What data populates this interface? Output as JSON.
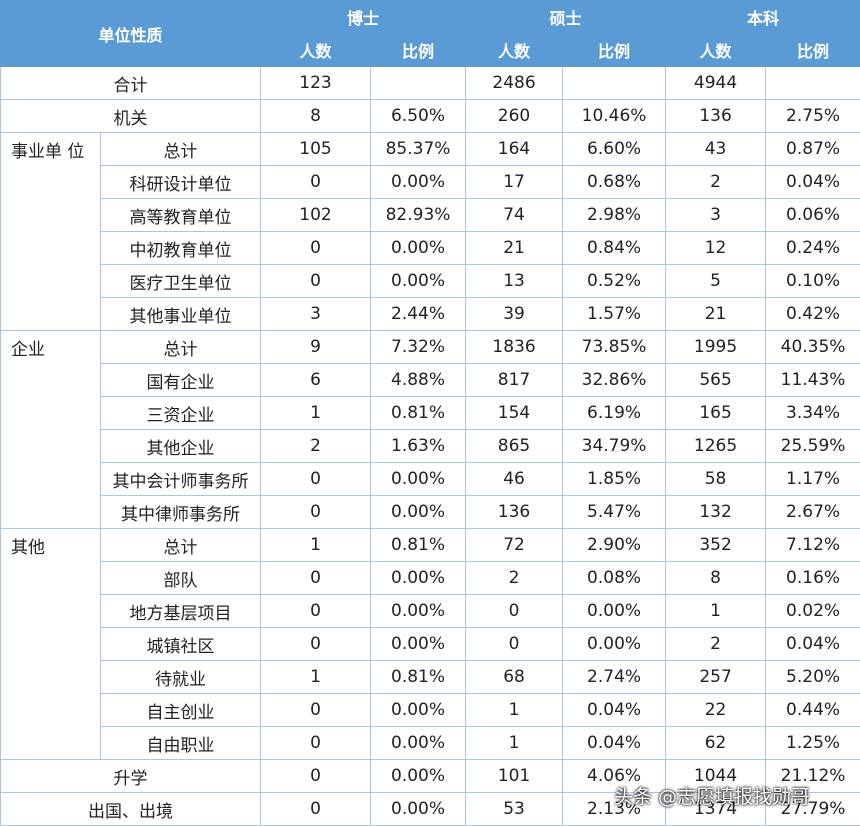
{
  "header": {
    "unit": "单位性质",
    "degrees": [
      "博士",
      "硕士",
      "本科"
    ],
    "subheaders": [
      "人数",
      "比例",
      "人数",
      "比例",
      "人数",
      "比例"
    ]
  },
  "sections": [
    {
      "label": "合计",
      "counts": [
        123,
        2486,
        4944
      ]
    },
    {
      "label": "机关",
      "counts": [
        8,
        260,
        136
      ],
      "ratios": [
        "6.50%",
        "10.46%",
        "2.75%"
      ]
    },
    {
      "group": "事业单 位",
      "rows": [
        {
          "label": "总计",
          "counts": [
            105,
            164,
            43
          ],
          "ratios": [
            "85.37%",
            "6.60%",
            "0.87%"
          ]
        },
        {
          "label": "科研设计单位",
          "counts": [
            0,
            17,
            2
          ],
          "ratios": [
            "0.00%",
            "0.68%",
            "0.04%"
          ]
        },
        {
          "label": "高等教育单位",
          "counts": [
            102,
            74,
            3
          ],
          "ratios": [
            "82.93%",
            "2.98%",
            "0.06%"
          ]
        },
        {
          "label": "中初教育单位",
          "counts": [
            0,
            21,
            12
          ],
          "ratios": [
            "0.00%",
            "0.84%",
            "0.24%"
          ]
        },
        {
          "label": "医疗卫生单位",
          "counts": [
            0,
            13,
            5
          ],
          "ratios": [
            "0.00%",
            "0.52%",
            "0.10%"
          ]
        },
        {
          "label": "其他事业单位",
          "counts": [
            3,
            39,
            21
          ],
          "ratios": [
            "2.44%",
            "1.57%",
            "0.42%"
          ]
        }
      ]
    },
    {
      "group": "企业",
      "rows": [
        {
          "label": "总计",
          "counts": [
            9,
            1836,
            1995
          ],
          "ratios": [
            "7.32%",
            "73.85%",
            "40.35%"
          ]
        },
        {
          "label": "国有企业",
          "counts": [
            6,
            817,
            565
          ],
          "ratios": [
            "4.88%",
            "32.86%",
            "11.43%"
          ]
        },
        {
          "label": "三资企业",
          "counts": [
            1,
            154,
            165
          ],
          "ratios": [
            "0.81%",
            "6.19%",
            "3.34%"
          ]
        },
        {
          "label": "其他企业",
          "counts": [
            2,
            865,
            1265
          ],
          "ratios": [
            "1.63%",
            "34.79%",
            "25.59%"
          ]
        },
        {
          "label": "其中会计师事务所",
          "counts": [
            0,
            46,
            58
          ],
          "ratios": [
            "0.00%",
            "1.85%",
            "1.17%"
          ]
        },
        {
          "label": "其中律师事务所",
          "counts": [
            0,
            136,
            132
          ],
          "ratios": [
            "0.00%",
            "5.47%",
            "2.67%"
          ]
        }
      ]
    },
    {
      "group": "其他",
      "rows": [
        {
          "label": "总计",
          "counts": [
            1,
            72,
            352
          ],
          "ratios": [
            "0.81%",
            "2.90%",
            "7.12%"
          ]
        },
        {
          "label": "部队",
          "counts": [
            0,
            2,
            8
          ],
          "ratios": [
            "0.00%",
            "0.08%",
            "0.16%"
          ]
        },
        {
          "label": "地方基层项目",
          "counts": [
            0,
            0,
            1
          ],
          "ratios": [
            "0.00%",
            "0.00%",
            "0.02%"
          ]
        },
        {
          "label": "城镇社区",
          "counts": [
            0,
            0,
            2
          ],
          "ratios": [
            "0.00%",
            "0.00%",
            "0.04%"
          ]
        },
        {
          "label": "待就业",
          "counts": [
            1,
            68,
            257
          ],
          "ratios": [
            "0.81%",
            "2.74%",
            "5.20%"
          ]
        },
        {
          "label": "自主创业",
          "counts": [
            0,
            1,
            22
          ],
          "ratios": [
            "0.00%",
            "0.04%",
            "0.44%"
          ]
        },
        {
          "label": "自由职业",
          "counts": [
            0,
            1,
            62
          ],
          "ratios": [
            "0.00%",
            "0.04%",
            "1.25%"
          ]
        }
      ]
    },
    {
      "label": "升学",
      "counts": [
        0,
        101,
        1044
      ],
      "ratios": [
        "0.00%",
        "4.06%",
        "21.12%"
      ]
    },
    {
      "label": "出国、出境",
      "counts": [
        0,
        53,
        1374
      ],
      "ratios": [
        "0.00%",
        "2.13%",
        "27.79%"
      ]
    }
  ],
  "watermark": "头条 @志愿填报找勋哥"
}
